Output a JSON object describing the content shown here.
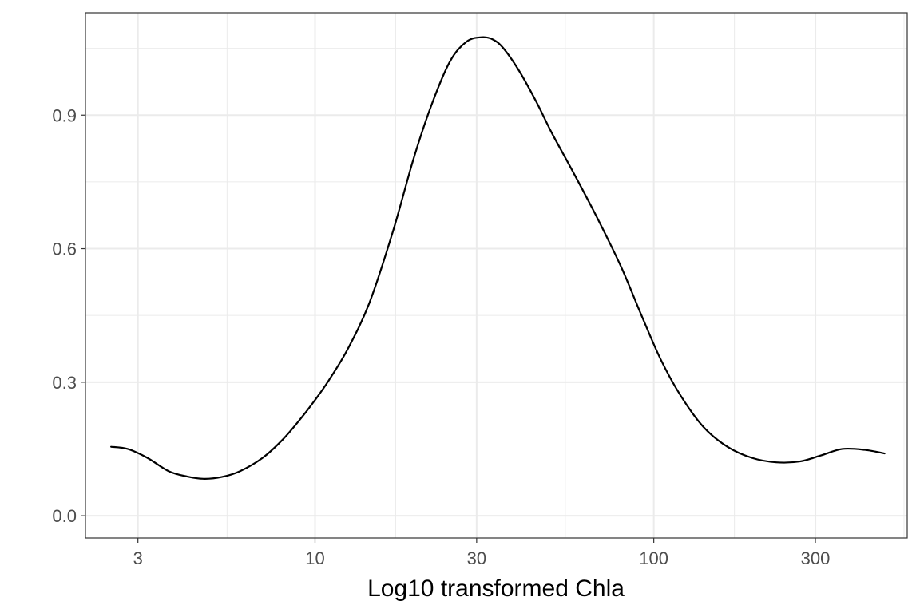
{
  "chart_data": {
    "type": "line",
    "title": "",
    "xlabel": "Log10 transformed Chla",
    "ylabel": "",
    "x_scale": "log10",
    "xlim": [
      2.1,
      560
    ],
    "ylim": [
      -0.05,
      1.13
    ],
    "x_ticks": [
      3,
      10,
      30,
      100,
      300
    ],
    "x_tick_labels": [
      "3",
      "10",
      "30",
      "100",
      "300"
    ],
    "x_minor_ticks": [
      5.5,
      17.3,
      54.8,
      173,
      548
    ],
    "y_ticks": [
      0.0,
      0.3,
      0.6,
      0.9
    ],
    "y_tick_labels": [
      "0.0",
      "0.3",
      "0.6",
      "0.9"
    ],
    "y_minor_ticks": [
      0.15,
      0.45,
      0.75,
      1.05
    ],
    "grid": true,
    "legend": "none",
    "series": [
      {
        "color": "#000000",
        "x": [
          2.5,
          2.8,
          3.2,
          3.7,
          4.2,
          4.7,
          5.3,
          6.0,
          7.0,
          8.0,
          9.0,
          10.0,
          11.0,
          12.5,
          14.5,
          17.0,
          19.5,
          22.0,
          25.0,
          28.0,
          31.0,
          33.5,
          36.0,
          40.0,
          45.0,
          50.0,
          58.0,
          68.0,
          80.0,
          92.0,
          105.0,
          120.0,
          140.0,
          165.0,
          195.0,
          230.0,
          270.0,
          310.0,
          360.0,
          420.0,
          480.0
        ],
        "y": [
          0.155,
          0.15,
          0.13,
          0.1,
          0.088,
          0.083,
          0.087,
          0.1,
          0.13,
          0.17,
          0.215,
          0.26,
          0.305,
          0.375,
          0.48,
          0.64,
          0.8,
          0.92,
          1.02,
          1.065,
          1.075,
          1.07,
          1.05,
          1.0,
          0.93,
          0.86,
          0.77,
          0.67,
          0.56,
          0.45,
          0.35,
          0.27,
          0.2,
          0.155,
          0.13,
          0.12,
          0.122,
          0.135,
          0.15,
          0.148,
          0.14
        ]
      }
    ]
  }
}
